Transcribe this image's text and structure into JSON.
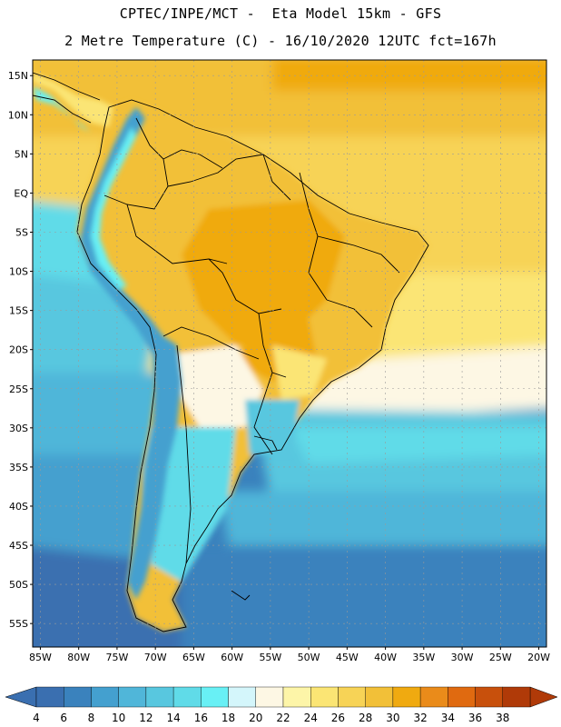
{
  "header": {
    "line1": "CPTEC/INPE/MCT -  Eta Model 15km - GFS",
    "line2": "2 Metre Temperature (C) - 16/10/2020 12UTC fct=167h"
  },
  "map": {
    "lon_range": [
      -86,
      -19
    ],
    "lat_range": [
      -58,
      17
    ],
    "lat_ticks": [
      "15N",
      "10N",
      "5N",
      "EQ",
      "5S",
      "10S",
      "15S",
      "20S",
      "25S",
      "30S",
      "35S",
      "40S",
      "45S",
      "50S",
      "55S"
    ],
    "lon_ticks": [
      "85W",
      "80W",
      "75W",
      "70W",
      "65W",
      "60W",
      "55W",
      "50W",
      "45W",
      "40W",
      "35W",
      "30W",
      "25W",
      "20W"
    ]
  },
  "colorbar": {
    "labels": [
      "4",
      "6",
      "8",
      "10",
      "12",
      "14",
      "16",
      "18",
      "20",
      "22",
      "24",
      "26",
      "28",
      "30",
      "32",
      "34",
      "36",
      "38"
    ],
    "colors": [
      "#3a6fb0",
      "#3a82bd",
      "#44a0cf",
      "#50b6d9",
      "#58c7df",
      "#60dbe8",
      "#68f0f5",
      "#d4f6fb",
      "#fdf7e4",
      "#fdf5a8",
      "#fbe574",
      "#f7d356",
      "#f2c038",
      "#f0aa10",
      "#ea8b1a",
      "#e06a10",
      "#c8500c",
      "#b03a08"
    ],
    "left_arrow_color": "#3a6fb0",
    "right_arrow_color": "#b03a08"
  },
  "colors": {
    "ocean_cold": "#3a6fb0",
    "ocean_cool": "#58c7df",
    "ocean_warm": "#f7d356",
    "land_hot": "#f0b030",
    "andes": "#50b6d9",
    "border": "#000000",
    "grid": "#9a9a9a"
  }
}
